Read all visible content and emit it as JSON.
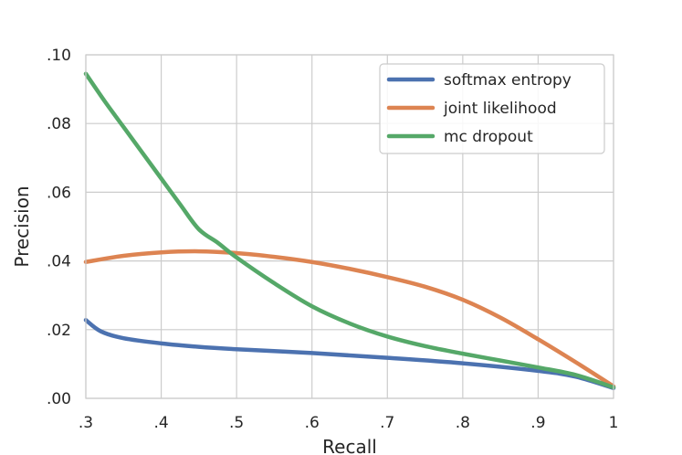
{
  "chart_data": {
    "type": "line",
    "title": "",
    "xlabel": "Recall",
    "ylabel": "Precision",
    "xlim": [
      0.3,
      1.0
    ],
    "ylim": [
      0.0,
      0.1
    ],
    "grid": true,
    "legend_position": "top-right",
    "x_ticks": [
      {
        "value": 0.3,
        "label": ".3"
      },
      {
        "value": 0.4,
        "label": ".4"
      },
      {
        "value": 0.5,
        "label": ".5"
      },
      {
        "value": 0.6,
        "label": ".6"
      },
      {
        "value": 0.7,
        "label": ".7"
      },
      {
        "value": 0.8,
        "label": ".8"
      },
      {
        "value": 0.9,
        "label": ".9"
      },
      {
        "value": 1.0,
        "label": "1"
      }
    ],
    "y_ticks": [
      {
        "value": 0.0,
        "label": ".00"
      },
      {
        "value": 0.02,
        "label": ".02"
      },
      {
        "value": 0.04,
        "label": ".04"
      },
      {
        "value": 0.06,
        "label": ".06"
      },
      {
        "value": 0.08,
        "label": ".08"
      },
      {
        "value": 0.1,
        "label": ".10"
      }
    ],
    "series": [
      {
        "name": "softmax entropy",
        "color": "#4c72b0",
        "points": [
          [
            0.3,
            0.0228
          ],
          [
            0.32,
            0.0195
          ],
          [
            0.35,
            0.0175
          ],
          [
            0.4,
            0.016
          ],
          [
            0.45,
            0.015
          ],
          [
            0.5,
            0.0143
          ],
          [
            0.6,
            0.0132
          ],
          [
            0.7,
            0.0118
          ],
          [
            0.8,
            0.0102
          ],
          [
            0.9,
            0.008
          ],
          [
            0.95,
            0.0063
          ],
          [
            1.0,
            0.003
          ]
        ]
      },
      {
        "name": "joint likelihood",
        "color": "#dd8452",
        "points": [
          [
            0.3,
            0.0397
          ],
          [
            0.35,
            0.0415
          ],
          [
            0.4,
            0.0425
          ],
          [
            0.45,
            0.0428
          ],
          [
            0.5,
            0.0423
          ],
          [
            0.55,
            0.0412
          ],
          [
            0.6,
            0.0397
          ],
          [
            0.65,
            0.0377
          ],
          [
            0.7,
            0.0353
          ],
          [
            0.75,
            0.0325
          ],
          [
            0.8,
            0.0287
          ],
          [
            0.85,
            0.0235
          ],
          [
            0.9,
            0.0172
          ],
          [
            0.95,
            0.0105
          ],
          [
            1.0,
            0.0035
          ]
        ]
      },
      {
        "name": "mc dropout",
        "color": "#55a868",
        "points": [
          [
            0.3,
            0.0945
          ],
          [
            0.325,
            0.0865
          ],
          [
            0.35,
            0.079
          ],
          [
            0.375,
            0.0715
          ],
          [
            0.4,
            0.064
          ],
          [
            0.425,
            0.0565
          ],
          [
            0.45,
            0.0492
          ],
          [
            0.475,
            0.0453
          ],
          [
            0.5,
            0.041
          ],
          [
            0.55,
            0.0335
          ],
          [
            0.6,
            0.0268
          ],
          [
            0.65,
            0.0218
          ],
          [
            0.7,
            0.018
          ],
          [
            0.75,
            0.0152
          ],
          [
            0.8,
            0.013
          ],
          [
            0.85,
            0.011
          ],
          [
            0.9,
            0.009
          ],
          [
            0.95,
            0.0068
          ],
          [
            1.0,
            0.0032
          ]
        ]
      }
    ]
  }
}
